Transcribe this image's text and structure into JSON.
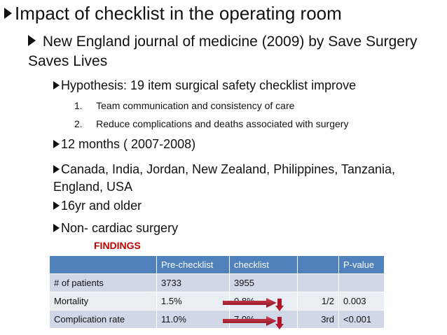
{
  "bullets": {
    "main": "Impact of checklist in the operating room",
    "sub": "New England journal of medicine (2009) by Save Surgery Saves Lives",
    "hypothesis": "Hypothesis: 19 item surgical safety checklist improve",
    "numbered": [
      {
        "num": "1.",
        "text": "Team communication and consistency of care"
      },
      {
        "num": "2.",
        "text": "Reduce complications and deaths associated with surgery"
      }
    ],
    "duration": "12 months ( 2007-2008)",
    "countries": "Canada, India, Jordan, New Zealand, Philippines, Tanzania, England, USA",
    "age": "16yr and older",
    "surgery": "Non- cardiac surgery"
  },
  "findings_label": "FINDINGS",
  "table": {
    "headers": [
      "",
      "Pre-checklist",
      "checklist",
      "",
      "P-value"
    ],
    "rows": [
      {
        "label": "# of patients",
        "pre": "3733",
        "post": "3955",
        "change": "",
        "p": ""
      },
      {
        "label": "Mortality",
        "pre": "1.5%",
        "post": "0.8%",
        "change": "1/2",
        "p": "0.003"
      },
      {
        "label": "Complication rate",
        "pre": "11.0%",
        "post": "7.0%",
        "change": "3rd",
        "p": "˂0.001"
      }
    ]
  },
  "colors": {
    "header_bg": "#4f81bd",
    "row_dark": "#d0d8e8",
    "row_light": "#e9edf4",
    "findings": "#c00000",
    "arrow": "#b0152a"
  }
}
